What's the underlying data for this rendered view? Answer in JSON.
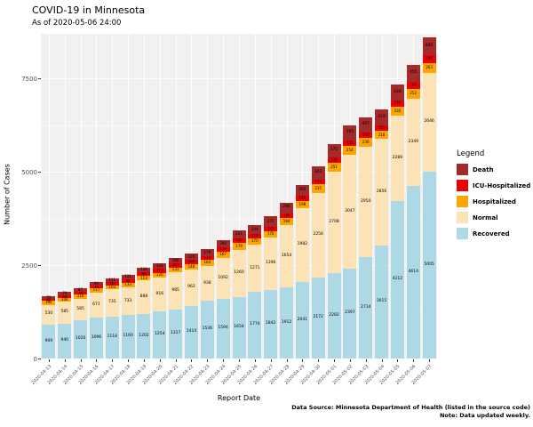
{
  "window": {
    "title": "COVID-19 in Minnesota",
    "subtitle": "As of 2020-05-06 24:00"
  },
  "chart_data": {
    "type": "bar",
    "stacked": true,
    "title": "COVID-19 in Minnesota",
    "subtitle": "As of 2020-05-06 24:00",
    "xlabel": "Report Date",
    "ylabel": "Number of Cases",
    "ylim": [
      0,
      8700
    ],
    "yticks": [
      0,
      2500,
      5000,
      7500
    ],
    "yticks_minor": [
      1250,
      3750,
      6250
    ],
    "grid": true,
    "legend_title": "Legend",
    "legend_position": "right",
    "legend_order": [
      "Death",
      "ICU-Hospitalized",
      "Hospitalized",
      "Normal",
      "Recovered"
    ],
    "categories": [
      "2020-04-13",
      "2020-04-14",
      "2020-04-15",
      "2020-04-16",
      "2020-04-17",
      "2020-04-18",
      "2020-04-19",
      "2020-04-20",
      "2020-04-21",
      "2020-04-22",
      "2020-04-23",
      "2020-04-24",
      "2020-04-25",
      "2020-04-26",
      "2020-04-27",
      "2020-04-28",
      "2020-04-29",
      "2020-04-30",
      "2020-05-01",
      "2020-05-02",
      "2020-05-03",
      "2020-05-04",
      "2020-05-05",
      "2020-05-06",
      "2020-05-07"
    ],
    "series": [
      {
        "name": "Recovered",
        "color": "#ADD8E6",
        "values": [
          909,
          940,
          1020,
          1096,
          1118,
          1160,
          1202,
          1254,
          1317,
          1414,
          1536,
          1594,
          1654,
          1774,
          1842,
          1912,
          2041,
          2172,
          2282,
          2397,
          2714,
          3015,
          4212,
          4614,
          5005
        ]
      },
      {
        "name": "Normal",
        "color": "#FCE3B5",
        "values": [
          530,
          585,
          585,
          671,
          735,
          733,
          888,
          916,
          985,
          962,
          938,
          1092,
          1260,
          1271,
          1396,
          1654,
          1982,
          2256,
          2708,
          3047,
          2950,
          2856,
          2289,
          2349,
          2646
        ]
      },
      {
        "name": "Hospitalized",
        "color": "#FFA500",
        "values": [
          102,
          104,
          110,
          117,
          103,
          133,
          113,
          120,
          131,
          148,
          164,
          167,
          179,
          170,
          170,
          194,
          198,
          235,
          251,
          254,
          236,
          218,
          230,
          252,
          263
        ]
      },
      {
        "name": "ICU-Hospitalized",
        "color": "#EE0000",
        "values": [
          64,
          69,
          74,
          75,
          86,
          96,
          99,
          111,
          107,
          109,
          111,
          119,
          125,
          118,
          125,
          129,
          125,
          130,
          138,
          135,
          145,
          155,
          170,
          188,
          198
        ]
      },
      {
        "name": "Death",
        "color": "#A52A2A",
        "values": [
          70,
          79,
          87,
          94,
          111,
          121,
          134,
          143,
          160,
          170,
          179,
          200,
          221,
          244,
          272,
          286,
          302,
          343,
          371,
          395,
          407,
          419,
          428,
          455,
          485
        ]
      }
    ]
  },
  "footer": {
    "line1": "Data Source: Minnesota Department of Health (listed in the source code)",
    "line2": "Note: Data updated weekly."
  }
}
